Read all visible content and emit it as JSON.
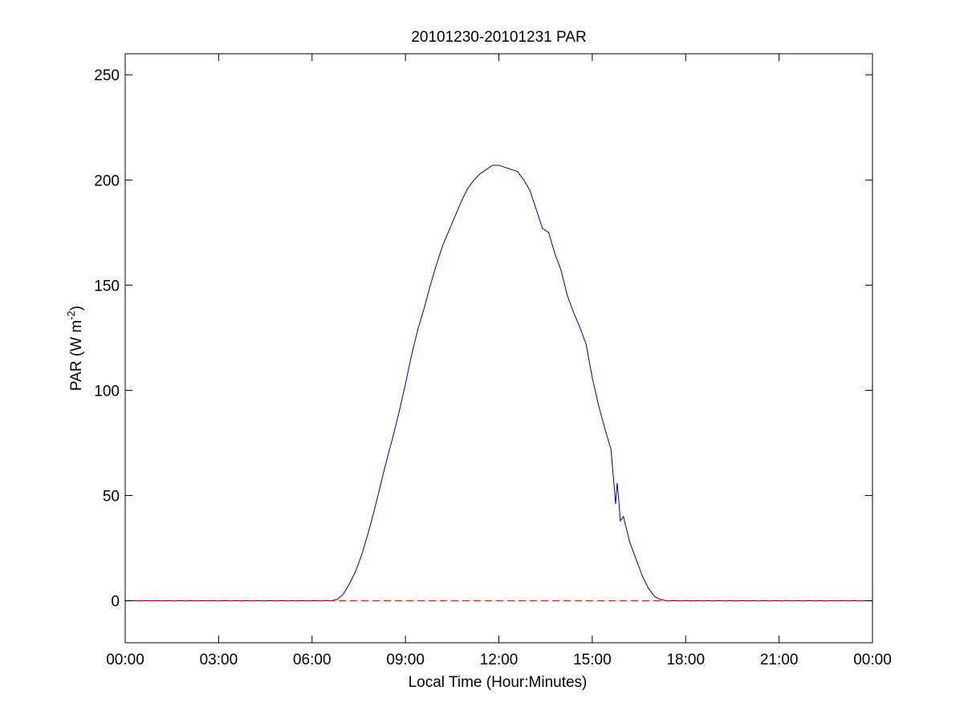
{
  "chart_data": {
    "type": "line",
    "title": "20101230-20101231 PAR",
    "xlabel": "Local Time (Hour:Minutes)",
    "ylabel": {
      "main": "PAR (W m",
      "superscript": "-2",
      "close": ")"
    },
    "xlim": [
      0,
      24
    ],
    "ylim": [
      -20,
      260
    ],
    "x_ticks": [
      0,
      3,
      6,
      9,
      12,
      15,
      18,
      21,
      24
    ],
    "x_tick_labels": [
      "00:00",
      "03:00",
      "06:00",
      "09:00",
      "12:00",
      "15:00",
      "18:00",
      "21:00",
      "00:00"
    ],
    "y_ticks": [
      0,
      50,
      100,
      150,
      200,
      250
    ],
    "y_tick_labels": [
      "0",
      "50",
      "100",
      "150",
      "200",
      "250"
    ],
    "grid": false,
    "series": [
      {
        "color": "#00008b",
        "style": "solid",
        "x": [
          0,
          6.0,
          6.6,
          6.8,
          7.0,
          7.2,
          7.4,
          7.6,
          7.8,
          8.0,
          8.2,
          8.4,
          8.6,
          8.8,
          9.0,
          9.2,
          9.4,
          9.6,
          9.8,
          10.0,
          10.2,
          10.4,
          10.6,
          10.8,
          11.0,
          11.2,
          11.4,
          11.6,
          11.8,
          12.0,
          12.2,
          12.4,
          12.6,
          12.8,
          13.0,
          13.2,
          13.4,
          13.6,
          13.8,
          14.0,
          14.2,
          14.4,
          14.6,
          14.8,
          15.0,
          15.2,
          15.4,
          15.6,
          15.7,
          15.75,
          15.8,
          15.85,
          15.9,
          16.0,
          16.1,
          16.2,
          16.4,
          16.6,
          16.8,
          17.0,
          17.2,
          17.4,
          18.0,
          24
        ],
        "y": [
          0,
          0,
          0,
          0.5,
          3,
          8,
          14,
          22,
          32,
          43,
          55,
          67,
          78,
          90,
          103,
          117,
          129,
          139,
          150,
          160,
          169,
          176,
          183,
          190,
          196,
          200,
          203,
          205,
          207,
          207,
          206,
          205,
          204,
          200,
          195,
          186,
          177,
          175,
          165,
          157,
          145,
          137,
          130,
          122,
          106,
          93,
          82,
          72,
          55,
          46,
          56,
          48,
          38,
          40,
          34,
          28,
          20,
          12,
          6,
          2,
          0.5,
          0,
          0,
          0
        ]
      },
      {
        "color": "#ff0000",
        "style": "dashed",
        "x": [
          0,
          24
        ],
        "y": [
          0,
          0
        ]
      }
    ]
  }
}
